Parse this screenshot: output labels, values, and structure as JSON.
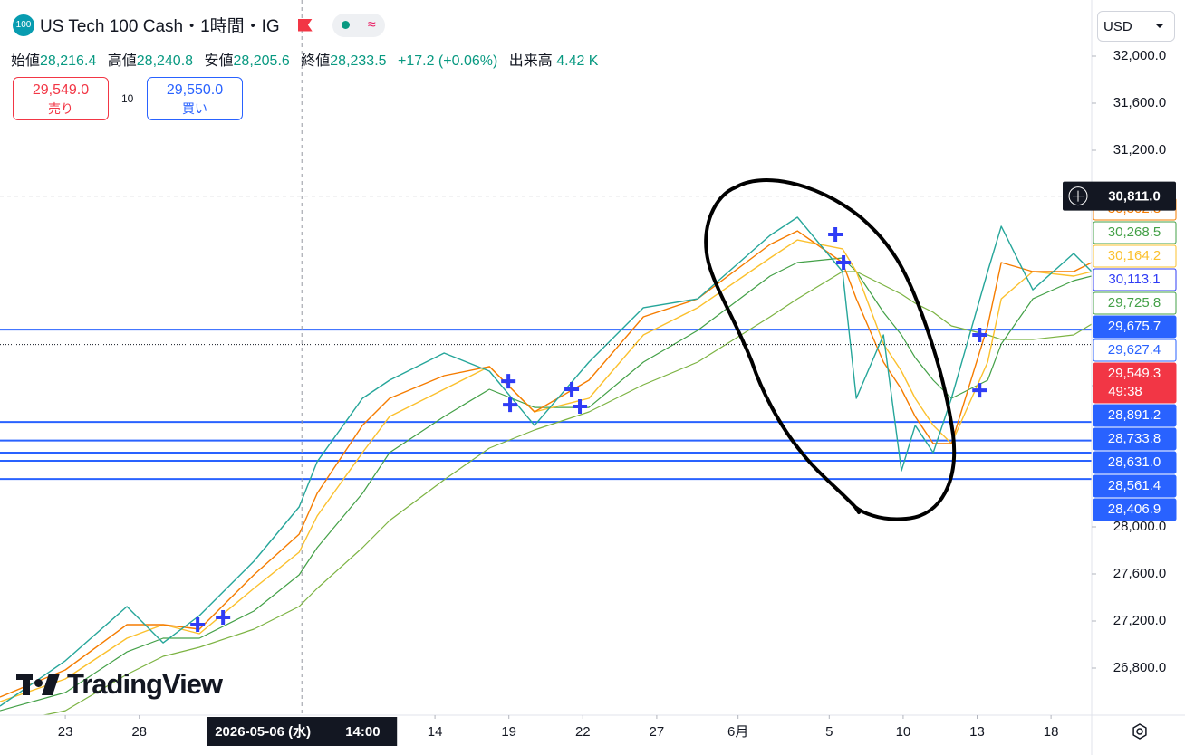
{
  "header": {
    "symbol_badge": "100",
    "title": "US Tech 100 Cash・1時間・IG",
    "ohlc": [
      {
        "label": "始値",
        "value": "28,216.4"
      },
      {
        "label": "高値",
        "value": "28,240.8"
      },
      {
        "label": "安値",
        "value": "28,205.6"
      },
      {
        "label": "終値",
        "value": "28,233.5"
      }
    ],
    "change": "+17.2 (+0.06%)",
    "volume_label": "出来高",
    "volume": "4.42 K",
    "sell_price": "29,549.0",
    "sell_label": "売り",
    "spread": "10",
    "buy_price": "29,550.0",
    "buy_label": "買い",
    "currency": "USD"
  },
  "watermark": "TradingView",
  "chart_data": {
    "type": "line",
    "x": [
      -2.65,
      0,
      2.5,
      3.97,
      5.44,
      7.65,
      9.49,
      10.22,
      12.06,
      13.16,
      15.37,
      17.21,
      19.04,
      21.25,
      23.46,
      25.66,
      28.6,
      29.71,
      31.54,
      32.1,
      33.2,
      33.93,
      34.49,
      35.22,
      35.96,
      37.43,
      37.98,
      39.26,
      40.92,
      41.65
    ],
    "series": [
      {
        "name": "Price",
        "color": "#26a69a",
        "width": 1.4,
        "values": [
          26477,
          26862,
          27323,
          27015,
          27246,
          27708,
          28169,
          28554,
          29092,
          29246,
          29477,
          29323,
          28862,
          29400,
          29862,
          29938,
          30477,
          30631,
          30169,
          29092,
          29631,
          28477,
          28862,
          28631,
          29092,
          30169,
          30554,
          30015,
          30323,
          30169
        ]
      },
      {
        "name": "MA fast",
        "color": "#f57c00",
        "width": 1.4,
        "values": [
          26554,
          26785,
          27169,
          27169,
          27131,
          27592,
          27938,
          28285,
          28862,
          29092,
          29285,
          29362,
          28977,
          29246,
          29785,
          29938,
          30400,
          30515,
          30246,
          29938,
          29400,
          29169,
          28938,
          28708,
          28708,
          29708,
          30246,
          30169,
          30169,
          30246
        ]
      },
      {
        "name": "MA mid",
        "color": "#fbc02d",
        "width": 1.4,
        "values": [
          26515,
          26708,
          27054,
          27169,
          27092,
          27477,
          27785,
          28092,
          28631,
          28938,
          29169,
          29362,
          28977,
          29092,
          29631,
          29862,
          30285,
          30438,
          30362,
          30169,
          29554,
          29323,
          29092,
          28862,
          28708,
          29400,
          29938,
          30169,
          30131,
          30169
        ]
      },
      {
        "name": "MA slow",
        "color": "#43a047",
        "width": 1.2,
        "values": [
          26438,
          26592,
          26938,
          27054,
          27054,
          27285,
          27592,
          27823,
          28285,
          28631,
          28938,
          29169,
          29015,
          29015,
          29400,
          29669,
          30131,
          30246,
          30285,
          30169,
          29823,
          29631,
          29438,
          29246,
          29092,
          29246,
          29554,
          29938,
          30092,
          30131
        ]
      },
      {
        "name": "MA long",
        "color": "#7cb342",
        "width": 1.2,
        "values": [
          26323,
          26438,
          26746,
          26900,
          26977,
          27131,
          27323,
          27477,
          27823,
          28054,
          28400,
          28669,
          28823,
          28977,
          29208,
          29400,
          29785,
          29938,
          30169,
          30169,
          30054,
          29977,
          29900,
          29823,
          29708,
          29631,
          29592,
          29592,
          29631,
          29723
        ]
      }
    ],
    "xlim": [
      -2.65,
      41.65
    ],
    "xticks": [
      {
        "value": 0,
        "label": "23"
      },
      {
        "value": 3,
        "label": "28"
      },
      {
        "value": 15,
        "label": "14"
      },
      {
        "value": 18,
        "label": "19"
      },
      {
        "value": 21,
        "label": "22"
      },
      {
        "value": 24,
        "label": "27"
      },
      {
        "value": 27.3,
        "label": "6月"
      },
      {
        "value": 31,
        "label": "5"
      },
      {
        "value": 34,
        "label": "10"
      },
      {
        "value": 37,
        "label": "13"
      },
      {
        "value": 40,
        "label": "18"
      }
    ],
    "ylim": [
      26400,
      32477
    ],
    "yticks": [
      {
        "value": 26800,
        "label": "26,800.0"
      },
      {
        "value": 27200,
        "label": "27,200.0"
      },
      {
        "value": 27600,
        "label": "27,600.0"
      },
      {
        "value": 28000,
        "label": "28,000.0"
      },
      {
        "value": 29200,
        "label": "29,200.0"
      },
      {
        "value": 31200,
        "label": "31,200.0"
      },
      {
        "value": 31600,
        "label": "31,600.0"
      },
      {
        "value": 32000,
        "label": "32,000.0"
      }
    ],
    "grid": false,
    "levels": {
      "color": "#2962ff",
      "values": [
        29675.7,
        28891.2,
        28733.8,
        28631.0,
        28561.4,
        28406.9
      ]
    },
    "markers": {
      "color": "#2f3cf5",
      "x": [
        5.37,
        6.4,
        17.98,
        18.05,
        20.55,
        20.88,
        31.25,
        31.58,
        37.1,
        37.1
      ],
      "values": [
        27169,
        27231,
        29238,
        29038,
        29169,
        29023,
        30485,
        30246,
        29631,
        29161
      ]
    },
    "price_badges": [
      {
        "value": 30302.8,
        "label": "30,302.8",
        "color": "#f57c00",
        "style": "outline"
      },
      {
        "value": 30268.5,
        "label": "30,268.5",
        "color": "#43a047",
        "style": "outline"
      },
      {
        "value": 30164.2,
        "label": "30,164.2",
        "color": "#fbc02d",
        "style": "outline"
      },
      {
        "value": 30113.1,
        "label": "30,113.1",
        "color": "#2f3cf5",
        "style": "outline"
      },
      {
        "value": 29725.8,
        "label": "29,725.8",
        "color": "#43a047",
        "style": "outline"
      },
      {
        "value": 29675.7,
        "label": "29,675.7",
        "color": "#2962ff",
        "style": "fill"
      },
      {
        "value": 29627.4,
        "label": "29,627.4",
        "color": "#2962ff",
        "style": "outline"
      },
      {
        "value": 29549.3,
        "label": "29,549.3",
        "countdown": "49:38",
        "color": "#f23645",
        "style": "fill"
      },
      {
        "value": 28891.2,
        "label": "28,891.2",
        "color": "#2962ff",
        "style": "fill"
      },
      {
        "value": 28733.8,
        "label": "28,733.8",
        "color": "#2962ff",
        "style": "fill"
      },
      {
        "value": 28631.0,
        "label": "28,631.0",
        "color": "#2962ff",
        "style": "fill"
      },
      {
        "value": 28561.4,
        "label": "28,561.4",
        "color": "#2962ff",
        "style": "fill"
      },
      {
        "value": 28406.9,
        "label": "28,406.9",
        "color": "#2962ff",
        "style": "fill"
      }
    ],
    "crosshair": {
      "x": 9.6,
      "x_label": "2026-05-06 (水)",
      "time_label": "14:00",
      "y": 30811.0,
      "y_label": "30,811.0"
    }
  }
}
